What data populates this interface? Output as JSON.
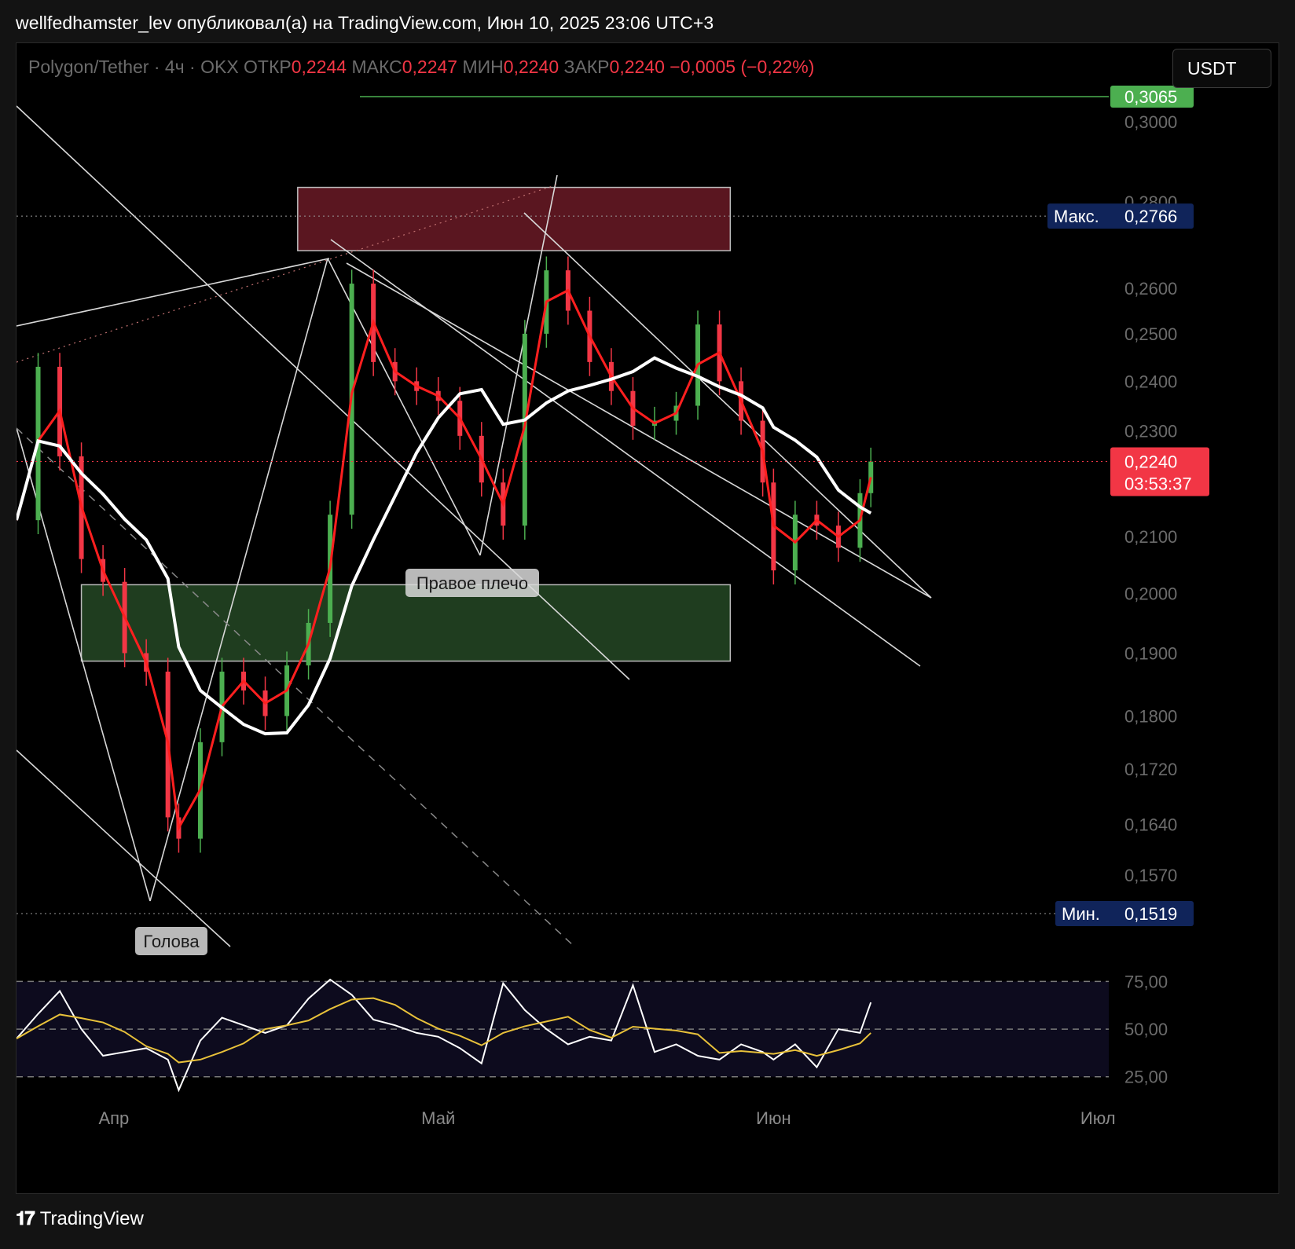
{
  "header": "wellfedhamster_lev опубликовал(а) на TradingView.com, Июн 10, 2025 23:06 UTC+3",
  "legend": {
    "symbol": "Polygon/Tether · 4ч · OKX",
    "open_label": "ОТКР",
    "open": "0,2244",
    "high_label": "МАКС",
    "high": "0,2247",
    "low_label": "МИН",
    "low": "0,2240",
    "close_label": "ЗАКР",
    "close": "0,2240",
    "change": "−0,0005 (−0,22%)"
  },
  "currency_button": "USDT",
  "footer_brand": "TradingView",
  "colors": {
    "background": "#000000",
    "candle_up": "#4caf50",
    "candle_down": "#f23645",
    "ma_fast": "#ff1f1f",
    "ma_slow": "#ffffff",
    "rsi": "#ffffff",
    "rsi_signal": "#e8c13a",
    "resistance_zone": "#5a1620",
    "support_zone": "#1f3d1f",
    "max_label_bg": "#10245a",
    "price_label_bg": "#f23645",
    "target_line": "#4caf50"
  },
  "chart_data": {
    "type": "candlestick",
    "symbol": "Polygon/Tether",
    "timeframe": "4ч",
    "exchange": "OKX",
    "ylim": [
      0.1519,
      0.3065
    ],
    "y_scale": "log",
    "price_ticks": [
      "0,3000",
      "0,2800",
      "0,2600",
      "0,2500",
      "0,2400",
      "0,2300",
      "0,2100",
      "0,2000",
      "0,1900",
      "0,1800",
      "0,1720",
      "0,1640",
      "0,1570"
    ],
    "price_tick_values": [
      0.3,
      0.28,
      0.26,
      0.25,
      0.24,
      0.23,
      0.21,
      0.2,
      0.19,
      0.18,
      0.172,
      0.164,
      0.157
    ],
    "x_ticks": [
      "Апр",
      "Май",
      "Июн",
      "Июл"
    ],
    "x_tick_dates": [
      "2025-04-01",
      "2025-05-01",
      "2025-06-01",
      "2025-07-01"
    ],
    "x_range": [
      "2025-03-23",
      "2025-07-02"
    ],
    "price_series": {
      "dates": [
        "2025-03-23",
        "2025-03-25",
        "2025-03-27",
        "2025-03-29",
        "2025-03-31",
        "2025-04-02",
        "2025-04-04",
        "2025-04-06",
        "2025-04-07",
        "2025-04-09",
        "2025-04-11",
        "2025-04-13",
        "2025-04-15",
        "2025-04-17",
        "2025-04-19",
        "2025-04-21",
        "2025-04-23",
        "2025-04-25",
        "2025-04-27",
        "2025-04-29",
        "2025-05-01",
        "2025-05-03",
        "2025-05-05",
        "2025-05-07",
        "2025-05-09",
        "2025-05-11",
        "2025-05-13",
        "2025-05-15",
        "2025-05-17",
        "2025-05-19",
        "2025-05-21",
        "2025-05-23",
        "2025-05-25",
        "2025-05-27",
        "2025-05-29",
        "2025-05-31",
        "2025-06-01",
        "2025-06-03",
        "2025-06-05",
        "2025-06-07",
        "2025-06-09",
        "2025-06-10"
      ],
      "closes": [
        0.213,
        0.243,
        0.225,
        0.206,
        0.202,
        0.19,
        0.187,
        0.165,
        0.162,
        0.176,
        0.187,
        0.184,
        0.18,
        0.188,
        0.195,
        0.214,
        0.261,
        0.244,
        0.24,
        0.238,
        0.236,
        0.229,
        0.22,
        0.212,
        0.25,
        0.264,
        0.255,
        0.244,
        0.238,
        0.231,
        0.232,
        0.235,
        0.252,
        0.24,
        0.232,
        0.22,
        0.204,
        0.214,
        0.212,
        0.208,
        0.218,
        0.224
      ]
    },
    "last_price": "0,2240",
    "countdown": "03:53:37",
    "max_label": "Макс.",
    "max_value": "0,2766",
    "min_label": "Мин.",
    "min_value": "0,1519",
    "target_value": "0,3065",
    "annotations": [
      "Голова",
      "Правое плечо"
    ],
    "zones": [
      {
        "name": "resistance",
        "from_date": "2025-04-18",
        "to_date": "2025-05-28",
        "y_low": 0.2685,
        "y_high": 0.2835
      },
      {
        "name": "support",
        "from_date": "2025-03-29",
        "to_date": "2025-05-28",
        "y_low": 0.1887,
        "y_high": 0.2015
      }
    ],
    "rsi": {
      "ylim": [
        15,
        90
      ],
      "ticks": [
        "75,00",
        "50,00",
        "25,00"
      ],
      "tick_values": [
        75,
        50,
        25
      ],
      "values": [
        45,
        58,
        70,
        50,
        36,
        38,
        40,
        34,
        18,
        44,
        56,
        52,
        48,
        52,
        66,
        76,
        68,
        55,
        52,
        48,
        46,
        40,
        32,
        74,
        60,
        50,
        42,
        46,
        44,
        73,
        38,
        42,
        36,
        34,
        42,
        38,
        34,
        42,
        30,
        50,
        48,
        64
      ]
    }
  }
}
